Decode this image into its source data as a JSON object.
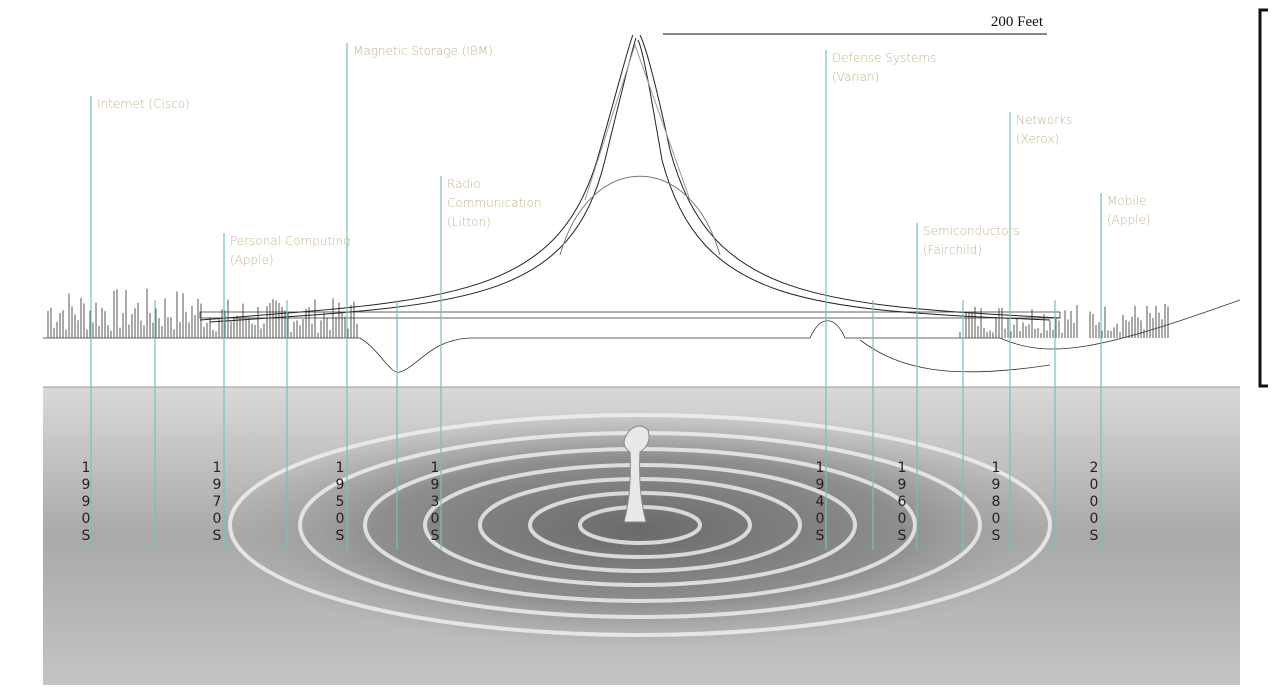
{
  "scale_label": "200 Feet",
  "labels": [
    {
      "lines": [
        "Internet (Cisco)"
      ]
    },
    {
      "lines": [
        "Magnetic Storage (IBM)"
      ]
    },
    {
      "lines": [
        "Personal Computing",
        "(Apple)"
      ]
    },
    {
      "lines": [
        "Radio",
        "Communication",
        "(Litton)"
      ]
    },
    {
      "lines": [
        "Defense Systems",
        "(Varian)"
      ]
    },
    {
      "lines": [
        "Networks",
        "(Xerox)"
      ]
    },
    {
      "lines": [
        "Semiconductors",
        "(Fairchild)"
      ]
    },
    {
      "lines": [
        "Mobile",
        "(Apple)"
      ]
    }
  ],
  "decades": [
    "1990S",
    "1970S",
    "1950S",
    "1930S",
    "1940S",
    "1960S",
    "1980S",
    "2000S"
  ]
}
